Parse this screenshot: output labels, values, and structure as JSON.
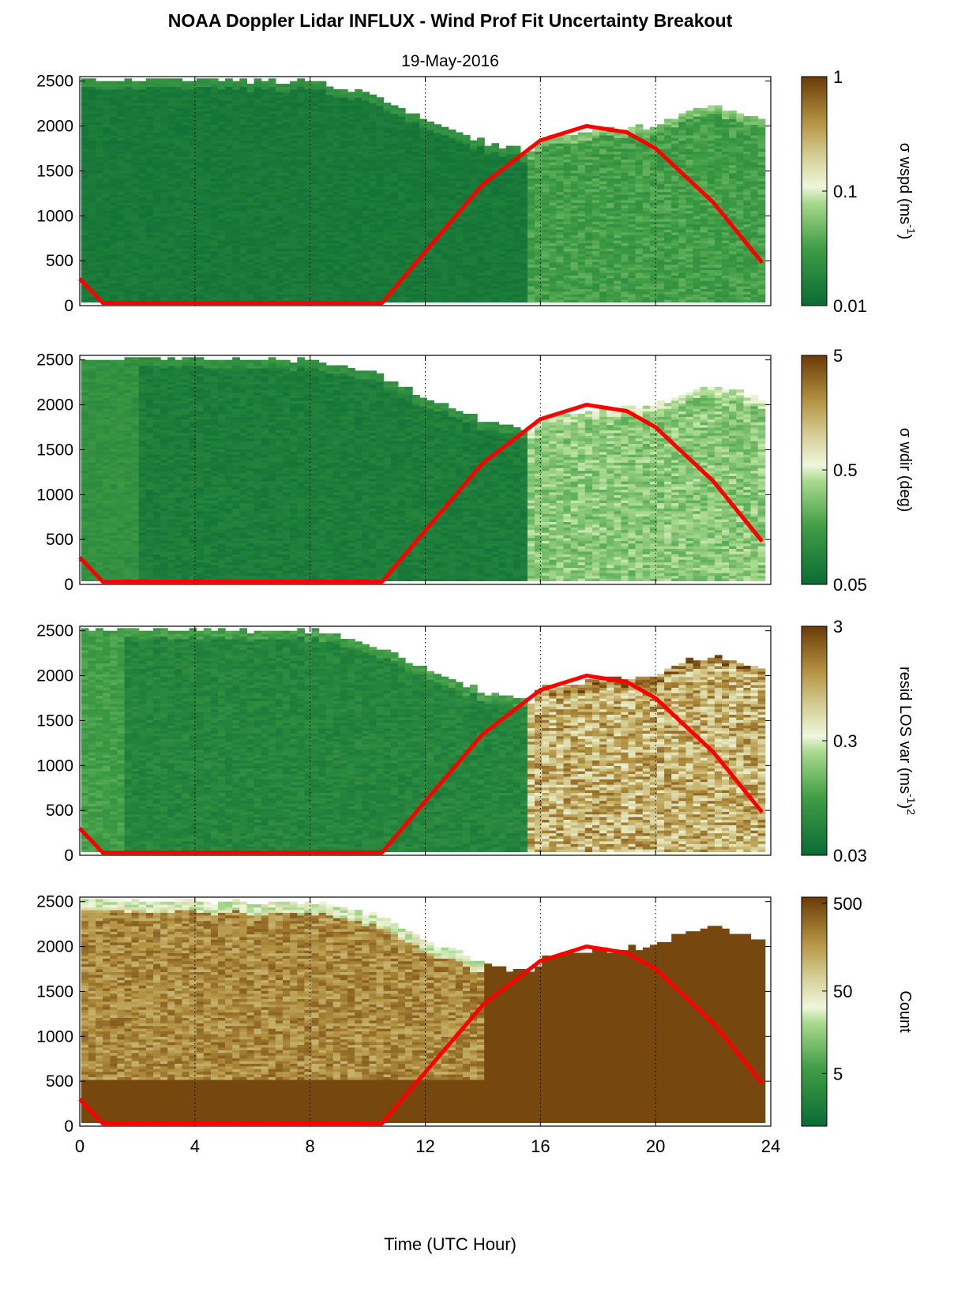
{
  "figure": {
    "title": "NOAA Doppler Lidar INFLUX - Wind Prof Fit Uncertainty Breakout",
    "subtitle": "19-May-2016",
    "xlabel": "Time (UTC Hour)"
  },
  "colors": {
    "dark_green": "#0a6b35",
    "mid_green": "#4aa84a",
    "light": "#e4f3cf",
    "tan": "#c8b56a",
    "brown": "#6b3a06",
    "sun_curve": "#ff0000"
  },
  "chart_data": [
    {
      "type": "heatmap",
      "panel": "wspd",
      "colorbar_label": "σ wspd (ms",
      "colorbar_label_sup": "-1",
      "colorbar_label_end": ")",
      "colorbar_scale": "log",
      "colorbar_ticks": [
        "1",
        "0.1",
        "0.01"
      ],
      "clim": [
        0.01,
        1
      ],
      "xlim": [
        0,
        24
      ],
      "ylim": [
        0,
        2550
      ],
      "xticks": [
        0,
        4,
        8,
        12,
        16,
        20,
        24
      ],
      "yticks": [
        0,
        500,
        1000,
        1500,
        2000,
        2500
      ],
      "grid": "dotted vertical at 4-hour intervals",
      "data_top_profile": {
        "x": [
          0,
          4,
          8,
          10,
          12,
          14,
          15.5,
          16,
          17,
          18,
          19,
          20,
          21,
          22,
          23,
          23.7
        ],
        "y": [
          2500,
          2500,
          2480,
          2350,
          2050,
          1800,
          1700,
          1850,
          1900,
          1950,
          1960,
          2000,
          2150,
          2200,
          2100,
          2050
        ]
      },
      "sun_elevation": {
        "x": [
          0,
          0.8,
          10.5,
          12,
          14,
          16,
          17.6,
          19,
          20,
          22,
          23.8
        ],
        "y": [
          300,
          30,
          30,
          600,
          1350,
          1840,
          2000,
          1930,
          1750,
          1150,
          440
        ]
      }
    },
    {
      "type": "heatmap",
      "panel": "wdir",
      "colorbar_label": "σ wdir (deg)",
      "colorbar_scale": "log",
      "colorbar_ticks": [
        "5",
        "0.5",
        "0.05"
      ],
      "clim": [
        0.05,
        5
      ],
      "xlim": [
        0,
        24
      ],
      "ylim": [
        0,
        2550
      ],
      "xticks": [
        0,
        4,
        8,
        12,
        16,
        20,
        24
      ],
      "yticks": [
        0,
        500,
        1000,
        1500,
        2000,
        2500
      ],
      "grid": "dotted vertical at 4-hour intervals"
    },
    {
      "type": "heatmap",
      "panel": "resid",
      "colorbar_label": "resid LOS var (ms",
      "colorbar_label_sup": "-1",
      "colorbar_label_end": ")",
      "colorbar_label_sup2": "2",
      "colorbar_scale": "log",
      "colorbar_ticks": [
        "3",
        "0.3",
        "0.03"
      ],
      "clim": [
        0.03,
        3
      ],
      "xlim": [
        0,
        24
      ],
      "ylim": [
        0,
        2550
      ],
      "xticks": [
        0,
        4,
        8,
        12,
        16,
        20,
        24
      ],
      "yticks": [
        0,
        500,
        1000,
        1500,
        2000,
        2500
      ],
      "grid": "dotted vertical at 4-hour intervals"
    },
    {
      "type": "heatmap",
      "panel": "count",
      "colorbar_label": "Count",
      "colorbar_scale": "log",
      "colorbar_ticks": [
        "500",
        "50",
        "5"
      ],
      "clim": [
        1,
        500
      ],
      "xlim": [
        0,
        24
      ],
      "ylim": [
        0,
        2550
      ],
      "xticks": [
        0,
        4,
        8,
        12,
        16,
        20,
        24
      ],
      "xticklabels": [
        "0",
        "4",
        "8",
        "12",
        "16",
        "20",
        "24"
      ],
      "yticks": [
        0,
        500,
        1000,
        1500,
        2000,
        2500
      ],
      "grid": "dotted vertical at 4-hour intervals"
    }
  ]
}
